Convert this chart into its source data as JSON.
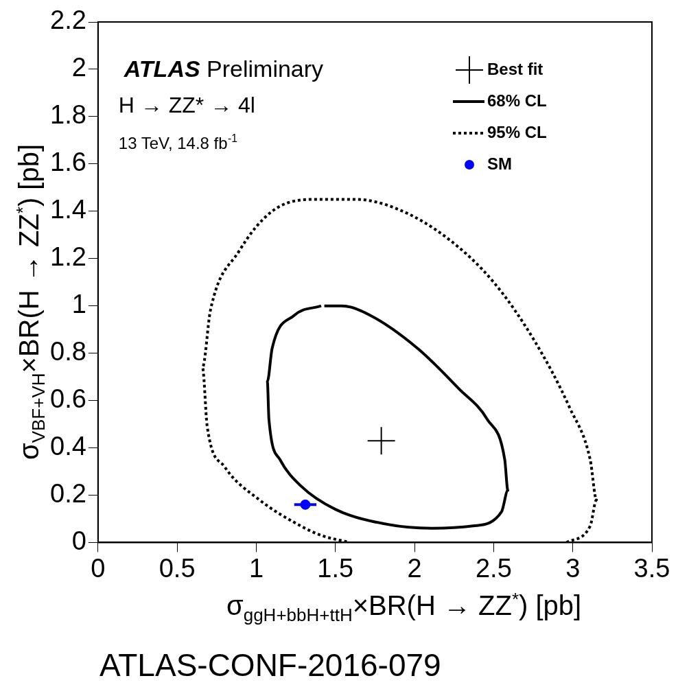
{
  "chart_data": {
    "type": "line",
    "xlabel": "σ$_{ggH+bbH+ttH}$×BR(H → ZZ$^{*}$) [pb]",
    "ylabel": "σ$_{VBF+VH}$×BR(H → ZZ$^{*}$) [pb]",
    "annotations": [
      "ATLAS Preliminary",
      "H → ZZ* → 4l",
      "13 TeV, 14.8 fb$^{-1}$",
      "ATLAS-CONF-2016-079"
    ],
    "xlim": [
      0,
      3.5
    ],
    "xticks": [
      0,
      0.5,
      1,
      1.5,
      2,
      2.5,
      3,
      3.5
    ],
    "ylim": [
      0,
      2.2
    ],
    "yticks": [
      0,
      0.2,
      0.4,
      0.6,
      0.8,
      1,
      1.2,
      1.4,
      1.6,
      1.8,
      2,
      2.2
    ],
    "grid": false,
    "legend": "top right",
    "series": [
      {
        "name": "Best fit",
        "type": "scatter",
        "marker": "cross",
        "color": "#000000",
        "x": [
          1.79
        ],
        "values": [
          0.43
        ]
      },
      {
        "name": "68% CL",
        "type": "line",
        "line_style": "solid",
        "marker": "none",
        "color": "#000000",
        "x": [
          1.41,
          1.24,
          1.1,
          1.07,
          1.08,
          1.15,
          1.28,
          1.5,
          1.8,
          2.11,
          2.37,
          2.55,
          2.59,
          2.57,
          2.46,
          2.28,
          2.02,
          1.72,
          1.54,
          1.43
        ],
        "values": [
          1.0,
          0.96,
          0.82,
          0.68,
          0.52,
          0.35,
          0.24,
          0.14,
          0.08,
          0.06,
          0.07,
          0.13,
          0.22,
          0.35,
          0.52,
          0.65,
          0.82,
          0.96,
          1.0,
          1.0
        ]
      },
      {
        "name": "95% CL",
        "type": "line",
        "line_style": "dotted",
        "marker": "none",
        "color": "#000000",
        "x": [
          2.96,
          3.11,
          3.15,
          3.11,
          2.98,
          2.76,
          2.5,
          2.2,
          1.89,
          1.63,
          1.35,
          1.1,
          0.89,
          0.71,
          0.66,
          0.69,
          0.8,
          1.02,
          1.28,
          1.41,
          1.59
        ],
        "values": [
          0,
          0.07,
          0.18,
          0.35,
          0.57,
          0.85,
          1.1,
          1.29,
          1.41,
          1.45,
          1.45,
          1.4,
          1.23,
          0.98,
          0.74,
          0.49,
          0.32,
          0.18,
          0.07,
          0.03,
          0
        ]
      },
      {
        "name": "SM",
        "type": "scatter",
        "marker": "circle",
        "color": "#0000ff",
        "x": [
          1.31
        ],
        "values": [
          0.16
        ],
        "xerrors": [
          0.07
        ]
      }
    ]
  }
}
